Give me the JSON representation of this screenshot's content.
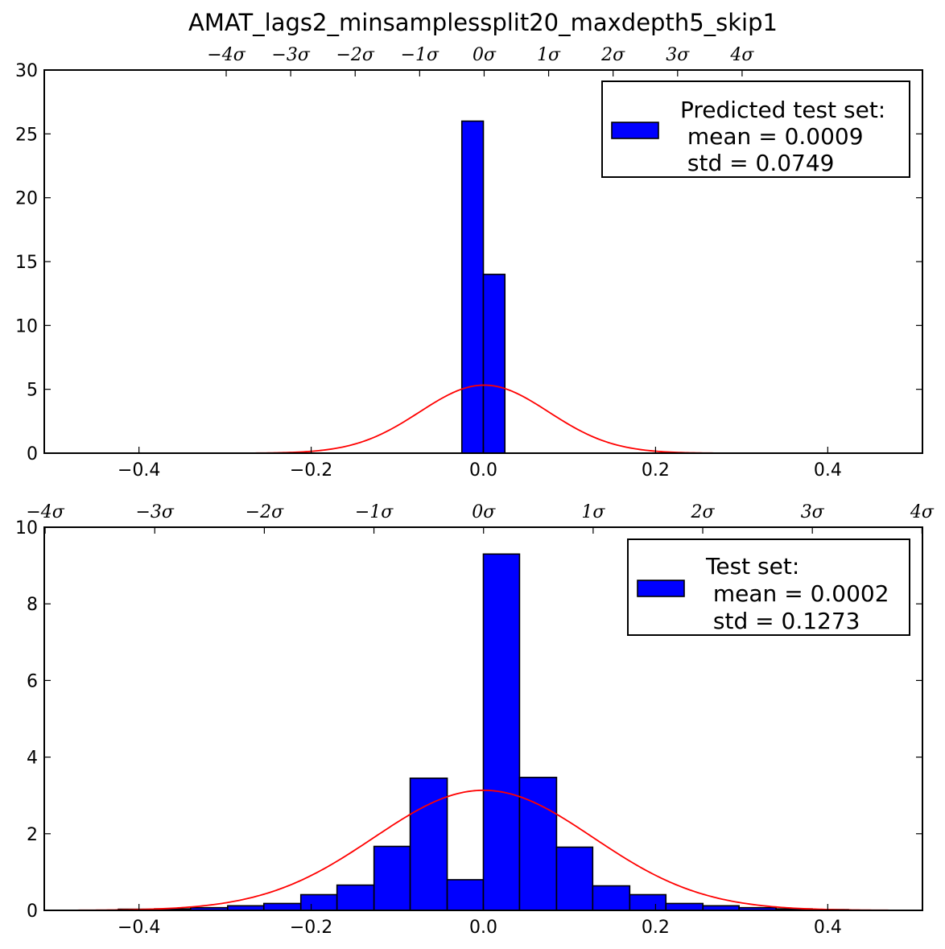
{
  "title": "AMAT_lags2_minsamplessplit20_maxdepth5_skip1",
  "colors": {
    "bar": "#0000ff",
    "curve": "#ff0000",
    "edge": "#000000"
  },
  "chart_data": [
    {
      "type": "bar",
      "panel": "top",
      "xlim": [
        -0.51,
        0.51
      ],
      "ylim": [
        0,
        30
      ],
      "x_ticks": [
        "−0.4",
        "−0.2",
        "0.0",
        "0.2",
        "0.4"
      ],
      "x_tick_values": [
        -0.4,
        -0.2,
        0.0,
        0.2,
        0.4
      ],
      "y_ticks": [
        "0",
        "5",
        "10",
        "15",
        "20",
        "25",
        "30"
      ],
      "y_tick_values": [
        0,
        5,
        10,
        15,
        20,
        25,
        30
      ],
      "sigma_ticks": [
        "−4σ",
        "−3σ",
        "−2σ",
        "−1σ",
        "0σ",
        "1σ",
        "2σ",
        "3σ",
        "4σ"
      ],
      "sigma_tick_values": [
        -0.2987,
        -0.2238,
        -0.1489,
        -0.074,
        0.0009,
        0.0758,
        0.1507,
        0.2256,
        0.3005
      ],
      "bars": [
        {
          "x0": -0.025,
          "x1": 0.0,
          "value": 26.0
        },
        {
          "x0": 0.0,
          "x1": 0.025,
          "value": 14.0
        }
      ],
      "curve": {
        "mean": 0.0009,
        "std": 0.0749
      },
      "legend": {
        "title": "Predicted test set:",
        "mean": " mean = 0.0009",
        "std": " std = 0.0749",
        "position": "top-right"
      }
    },
    {
      "type": "bar",
      "panel": "bottom",
      "xlim": [
        -0.51,
        0.51
      ],
      "ylim": [
        0,
        10
      ],
      "x_ticks": [
        "−0.4",
        "−0.2",
        "0.0",
        "0.2",
        "0.4"
      ],
      "x_tick_values": [
        -0.4,
        -0.2,
        0.0,
        0.2,
        0.4
      ],
      "y_ticks": [
        "0",
        "2",
        "4",
        "6",
        "8",
        "10"
      ],
      "y_tick_values": [
        0,
        2,
        4,
        6,
        8,
        10
      ],
      "sigma_ticks": [
        "−4σ",
        "−3σ",
        "−2σ",
        "−1σ",
        "0σ",
        "1σ",
        "2σ",
        "3σ",
        "4σ"
      ],
      "sigma_tick_values": [
        -0.509,
        -0.3817,
        -0.2544,
        -0.1271,
        0.0002,
        0.1275,
        0.2548,
        0.3821,
        0.5094
      ],
      "bars": [
        {
          "x0": -0.424,
          "x1": -0.382,
          "value": 0.03
        },
        {
          "x0": -0.382,
          "x1": -0.34,
          "value": 0.04
        },
        {
          "x0": -0.34,
          "x1": -0.297,
          "value": 0.07
        },
        {
          "x0": -0.297,
          "x1": -0.255,
          "value": 0.12
        },
        {
          "x0": -0.255,
          "x1": -0.212,
          "value": 0.18
        },
        {
          "x0": -0.212,
          "x1": -0.17,
          "value": 0.41
        },
        {
          "x0": -0.17,
          "x1": -0.127,
          "value": 0.66
        },
        {
          "x0": -0.127,
          "x1": -0.085,
          "value": 1.67
        },
        {
          "x0": -0.085,
          "x1": -0.042,
          "value": 3.45
        },
        {
          "x0": -0.042,
          "x1": 0.0,
          "value": 0.8
        },
        {
          "x0": 0.0,
          "x1": 0.042,
          "value": 9.3
        },
        {
          "x0": 0.042,
          "x1": 0.085,
          "value": 3.47
        },
        {
          "x0": 0.085,
          "x1": 0.127,
          "value": 1.65
        },
        {
          "x0": 0.127,
          "x1": 0.17,
          "value": 0.64
        },
        {
          "x0": 0.17,
          "x1": 0.212,
          "value": 0.41
        },
        {
          "x0": 0.212,
          "x1": 0.255,
          "value": 0.18
        },
        {
          "x0": 0.255,
          "x1": 0.297,
          "value": 0.12
        },
        {
          "x0": 0.297,
          "x1": 0.34,
          "value": 0.07
        },
        {
          "x0": 0.34,
          "x1": 0.382,
          "value": 0.04
        },
        {
          "x0": 0.382,
          "x1": 0.424,
          "value": 0.02
        }
      ],
      "curve": {
        "mean": 0.0002,
        "std": 0.1273
      },
      "legend": {
        "title": "Test set:",
        "mean": " mean = 0.0002",
        "std": " std = 0.1273",
        "position": "top-right"
      }
    }
  ]
}
